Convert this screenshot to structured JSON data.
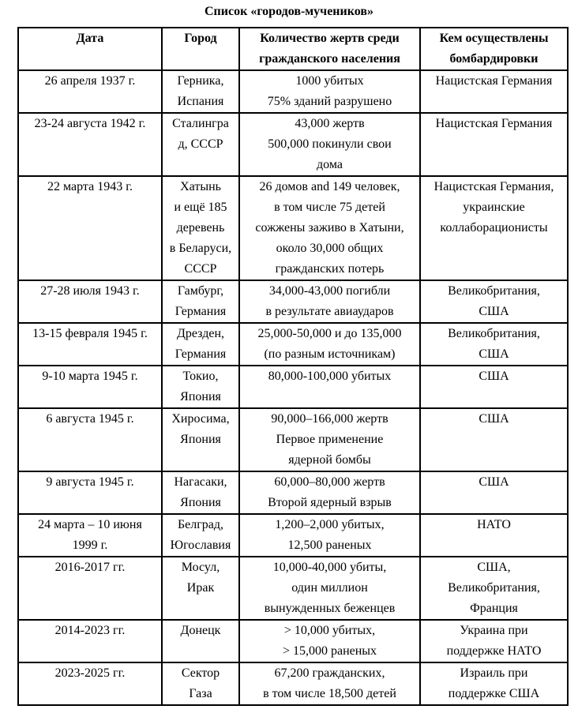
{
  "page_title": "Список «городов-мучеников»",
  "colors": {
    "background": "#ffffff",
    "text": "#000000",
    "border": "#000000"
  },
  "table": {
    "column_names": [
      "date",
      "city",
      "victims",
      "perpetrator"
    ],
    "headers": {
      "date": [
        "Дата"
      ],
      "city": [
        "Город"
      ],
      "victims": [
        "Количество жертв среди",
        "гражданского населения"
      ],
      "perpetrator": [
        "Кем осуществлены",
        "бомбардировки"
      ]
    },
    "rows": [
      {
        "date": [
          "26 апреля 1937 г."
        ],
        "city": [
          "Герника,",
          "Испания"
        ],
        "victims": [
          "1000 убитых",
          "75% зданий разрушено"
        ],
        "perpetrator": [
          "Нацистская Германия"
        ]
      },
      {
        "date": [
          "23-24 августа 1942 г."
        ],
        "city": [
          "Сталингра",
          "д, СССР"
        ],
        "victims": [
          "43,000 жертв",
          "500,000 покинули свои",
          "дома"
        ],
        "perpetrator": [
          "Нацистская Германия"
        ]
      },
      {
        "date": [
          "22 марта 1943 г."
        ],
        "city": [
          "Хатынь",
          "и ещё 185",
          "деревень",
          "в Беларуси,",
          "СССР"
        ],
        "victims": [
          "26 домов and 149 человек,",
          "в том числе 75 детей",
          "сожжены заживо в Хатыни,",
          "около 30,000 общих",
          "гражданских потерь"
        ],
        "perpetrator": [
          "Нацистская Германия,",
          "украинские",
          "коллаборационисты"
        ]
      },
      {
        "date": [
          "27-28 июля 1943 г."
        ],
        "city": [
          "Гамбург,",
          "Германия"
        ],
        "victims": [
          "34,000-43,000 погибли",
          "в результате авиаударов"
        ],
        "perpetrator": [
          "Великобритания,",
          "США"
        ]
      },
      {
        "date": [
          "13-15 февраля 1945 г."
        ],
        "city": [
          "Дрезден,",
          "Германия"
        ],
        "victims": [
          "25,000-50,000 и до 135,000",
          "(по разным источникам)"
        ],
        "perpetrator": [
          "Великобритания,",
          "США"
        ]
      },
      {
        "date": [
          "9-10 марта 1945 г."
        ],
        "city": [
          "Токио,",
          "Япония"
        ],
        "victims": [
          "80,000-100,000 убитых"
        ],
        "perpetrator": [
          "США"
        ]
      },
      {
        "date": [
          "6 августа 1945 г."
        ],
        "city": [
          "Хиросима,",
          "Япония"
        ],
        "victims": [
          "90,000–166,000 жертв",
          "Первое применение",
          "ядерной бомбы"
        ],
        "perpetrator": [
          "США"
        ]
      },
      {
        "date": [
          "9 августа 1945 г."
        ],
        "city": [
          "Нагасаки,",
          "Япония"
        ],
        "victims": [
          "60,000–80,000 жертв",
          "Второй ядерный взрыв"
        ],
        "perpetrator": [
          "США"
        ]
      },
      {
        "date": [
          "24 марта – 10 июня",
          "1999 г."
        ],
        "city": [
          "Белград,",
          "Югославия"
        ],
        "victims": [
          "1,200–2,000 убитых,",
          "12,500 раненых"
        ],
        "perpetrator": [
          "НАТО"
        ]
      },
      {
        "date": [
          "2016-2017 гг."
        ],
        "city": [
          "Мосул,",
          "Ирак"
        ],
        "victims": [
          "10,000-40,000 убиты,",
          "один миллион",
          "вынужденных беженцев"
        ],
        "perpetrator": [
          "США,",
          "Великобритания,",
          "Франция"
        ]
      },
      {
        "date": [
          "2014-2023 гг."
        ],
        "city": [
          "Донецк"
        ],
        "victims": [
          "> 10,000 убитых,",
          "> 15,000 раненых"
        ],
        "perpetrator": [
          "Украина при",
          "поддержке НАТО"
        ]
      },
      {
        "date": [
          "2023-2025 гг."
        ],
        "city": [
          "Сектор",
          "Газа"
        ],
        "victims": [
          "67,200 гражданских,",
          "в том числе 18,500 детей"
        ],
        "perpetrator": [
          "Израиль при",
          "поддержке США"
        ]
      }
    ]
  }
}
